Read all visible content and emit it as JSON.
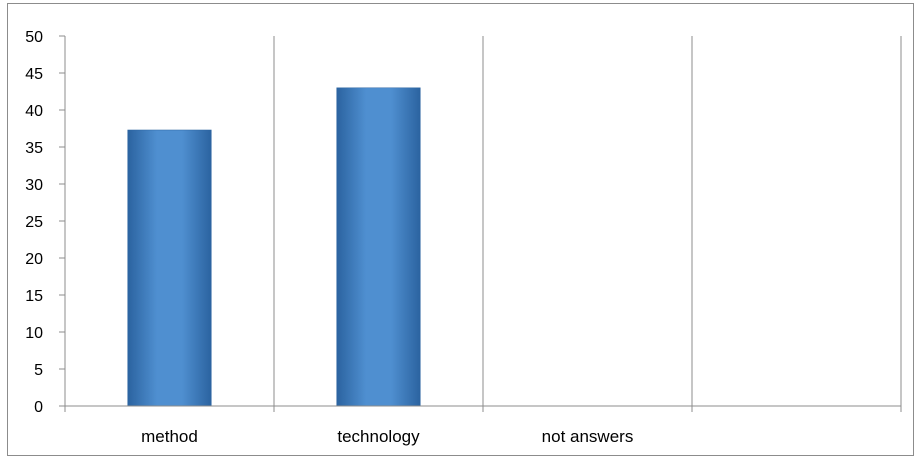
{
  "chart_data": {
    "type": "bar",
    "categories": [
      "method",
      "technology",
      "not answers",
      ""
    ],
    "values": [
      37.3,
      43,
      0,
      0
    ],
    "title": "",
    "xlabel": "",
    "ylabel": "",
    "ylim": [
      0,
      50
    ],
    "yticks": [
      0,
      5,
      10,
      15,
      20,
      25,
      30,
      35,
      40,
      45,
      50
    ],
    "grid": "vertical-category-separators",
    "legend": "none",
    "colors": {
      "bar_light": "#5b9bd5",
      "bar_mid": "#3f80c4",
      "bar_dark": "#2b63a0",
      "gridline": "#8c8c8c",
      "axis": "#8c8c8c",
      "frame": "#8c8c8c"
    }
  }
}
